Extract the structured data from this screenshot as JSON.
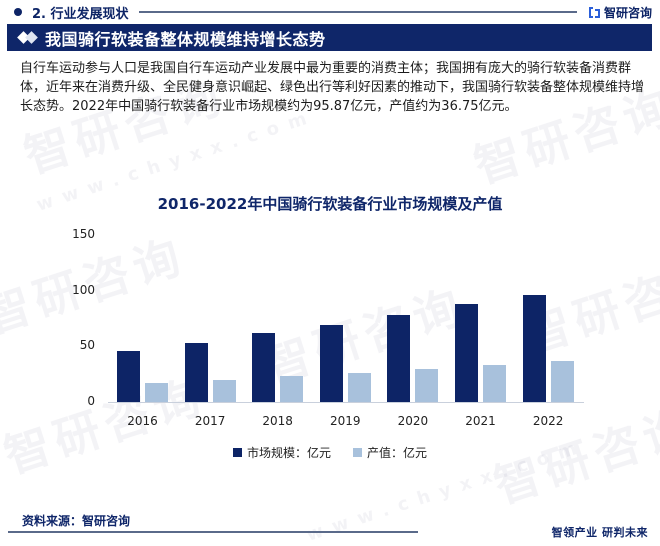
{
  "header": {
    "section_title": "2. 行业发展现状",
    "brand_name": "智研咨询"
  },
  "banner": {
    "title": "我国骑行软装备整体规模维持增长态势"
  },
  "paragraph": "自行车运动参与人口是我国自行车运动产业发展中最为重要的消费主体；我国拥有庞大的骑行软装备消费群体，近年来在消费升级、全民健身意识崛起、绿色出行等利好因素的推动下，我国骑行软装备整体规模维持增长态势。2022年中国骑行软装备行业市场规模约为95.87亿元，产值约为36.75亿元。",
  "watermark": {
    "cn": "智研咨询",
    "url": "www.chyxx.com"
  },
  "colors": {
    "primary": "#0d2466",
    "secondary": "#a8c1dc",
    "banner": "#0f2669"
  },
  "chart_data": {
    "type": "bar",
    "title": "2016-2022年中国骑行软装备行业市场规模及产值",
    "categories": [
      "2016",
      "2017",
      "2018",
      "2019",
      "2020",
      "2021",
      "2022"
    ],
    "series": [
      {
        "name": "市场规模：亿元",
        "color": "#0d2466",
        "values": [
          46,
          53,
          62,
          69,
          78,
          88,
          95.87
        ]
      },
      {
        "name": "产值：亿元",
        "color": "#a8c1dc",
        "values": [
          17,
          20,
          23,
          26,
          30,
          33,
          36.75
        ]
      }
    ],
    "xlabel": "",
    "ylabel": "",
    "ylim": [
      0,
      150
    ],
    "yticks": [
      "0",
      "50",
      "100",
      "150"
    ],
    "grid": false,
    "legend_position": "bottom"
  },
  "footer": {
    "source": "资料来源：智研咨询",
    "slogan": "智领产业 研判未来"
  }
}
